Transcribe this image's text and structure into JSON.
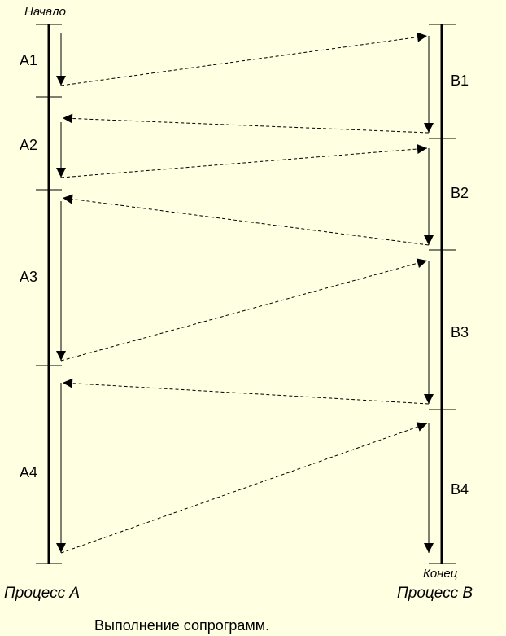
{
  "labels": {
    "start": "Начало",
    "end": "Конец",
    "process_a": "Процесс А",
    "process_b": "Процесс В",
    "caption": "Выполнение сопрограмм."
  },
  "segments_a": [
    "А1",
    "А2",
    "А3",
    "А4"
  ],
  "segments_b": [
    "В1",
    "В2",
    "В3",
    "В4"
  ],
  "colors": {
    "background": "#ffffe1",
    "lines": "#000000"
  }
}
